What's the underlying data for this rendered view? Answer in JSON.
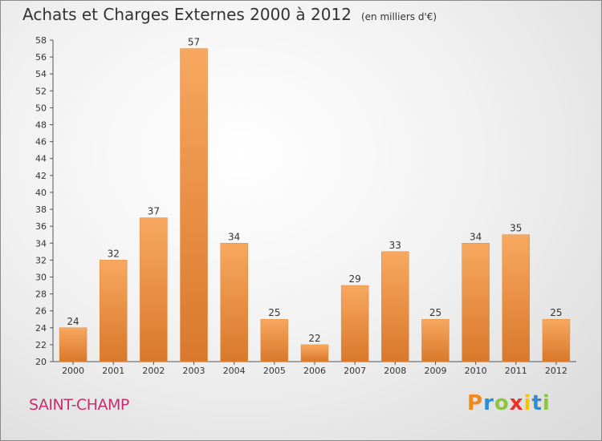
{
  "chart_data": {
    "type": "bar",
    "title": "Achats et Charges Externes 2000 à 2012",
    "subtitle": "(en milliers d'€)",
    "categories": [
      "2000",
      "2001",
      "2002",
      "2003",
      "2004",
      "2005",
      "2006",
      "2007",
      "2008",
      "2009",
      "2010",
      "2011",
      "2012"
    ],
    "values": [
      24,
      32,
      37,
      57,
      34,
      25,
      22,
      29,
      33,
      25,
      34,
      35,
      25
    ],
    "ylim": [
      20,
      58
    ],
    "yticks": [
      20,
      22,
      24,
      26,
      28,
      30,
      32,
      34,
      36,
      38,
      40,
      42,
      44,
      46,
      48,
      50,
      52,
      54,
      56,
      58
    ],
    "grid": false,
    "legend": "none",
    "bar_color_light": "#f7a860",
    "bar_color_dark": "#d9782a"
  },
  "footer": {
    "place": "SAINT-CHAMP",
    "logo_letters": [
      "P",
      "r",
      "o",
      "x",
      "i",
      "t",
      "i"
    ],
    "logo_colors": [
      "#f08a1c",
      "#2d8fd3",
      "#8cc63f",
      "#e6332a",
      "#f5c400",
      "#2d8fd3",
      "#8cc63f"
    ]
  }
}
